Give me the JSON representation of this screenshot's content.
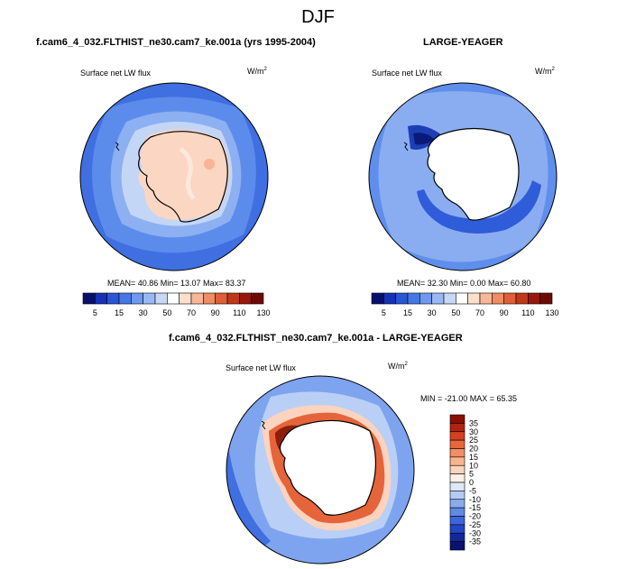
{
  "season_title": "DJF",
  "panels": [
    {
      "title": "f.cam6_4_032.FLTHIST_ne30.cam7_ke.001a (yrs 1995-2004)",
      "variable": "Surface net LW flux",
      "units": "W/m",
      "units_exp": "2",
      "stats": "MEAN= 40.86  Min= 13.07  Max= 83.37"
    },
    {
      "title": "LARGE-YEAGER",
      "variable": "Surface net LW flux",
      "units": "W/m",
      "units_exp": "2",
      "stats": "MEAN= 32.30  Min=  0.00  Max= 60.80"
    },
    {
      "title": "f.cam6_4_032.FLTHIST_ne30.cam7_ke.001a - LARGE-YEAGER",
      "variable": "Surface net LW flux",
      "units": "W/m",
      "units_exp": "2",
      "stats": "MIN = -21.00 MAX = 65.35"
    }
  ],
  "chart_data": [
    {
      "type": "heatmap",
      "title": "f.cam6_4_032.FLTHIST_ne30.cam7_ke.001a (yrs 1995-2004)",
      "variable": "Surface net LW flux",
      "units": "W/m2",
      "projection": "south polar stereographic",
      "mean": 40.86,
      "min": 13.07,
      "max": 83.37,
      "colorbar": {
        "tick_labels": [
          "5",
          "15",
          "30",
          "50",
          "70",
          "90",
          "110",
          "130"
        ],
        "colors": [
          "#08106e",
          "#1532b8",
          "#2a56d6",
          "#4478e6",
          "#6f98ef",
          "#9ab9f4",
          "#c7d8f6",
          "#ffffff",
          "#fde0cc",
          "#f7b897",
          "#ef8d64",
          "#de5f38",
          "#c0371a",
          "#98180b",
          "#6e0a04"
        ]
      }
    },
    {
      "type": "heatmap",
      "title": "LARGE-YEAGER",
      "variable": "Surface net LW flux",
      "units": "W/m2",
      "projection": "south polar stereographic",
      "mean": 32.3,
      "min": 0.0,
      "max": 60.8,
      "colorbar": {
        "tick_labels": [
          "5",
          "15",
          "30",
          "50",
          "70",
          "90",
          "110",
          "130"
        ],
        "colors": [
          "#08106e",
          "#1532b8",
          "#2a56d6",
          "#4478e6",
          "#6f98ef",
          "#9ab9f4",
          "#c7d8f6",
          "#ffffff",
          "#fde0cc",
          "#f7b897",
          "#ef8d64",
          "#de5f38",
          "#c0371a",
          "#98180b",
          "#6e0a04"
        ]
      }
    },
    {
      "type": "heatmap",
      "title": "f.cam6_4_032.FLTHIST_ne30.cam7_ke.001a - LARGE-YEAGER",
      "variable": "Surface net LW flux",
      "units": "W/m2",
      "projection": "south polar stereographic",
      "min": -21.0,
      "max": 65.35,
      "colorbar": {
        "orientation": "vertical",
        "tick_labels": [
          "35",
          "30",
          "25",
          "20",
          "15",
          "10",
          "5",
          "0",
          "-5",
          "-10",
          "-15",
          "-20",
          "-25",
          "-30",
          "-35"
        ],
        "colors": [
          "#8a0f05",
          "#b3230f",
          "#d34120",
          "#e8663c",
          "#f38d63",
          "#f9b48e",
          "#fcd4bd",
          "#fdf0e6",
          "#dde8f8",
          "#b4ccf4",
          "#8aacee",
          "#6189e6",
          "#3c66dc",
          "#2246c4",
          "#12279a",
          "#081270"
        ]
      }
    }
  ],
  "colors": {
    "ocean_mid": "#4f7fe6",
    "ocean_light": "#86aaf0",
    "land_warm": "#fbd3bf",
    "diff_red": "#d8401d"
  }
}
